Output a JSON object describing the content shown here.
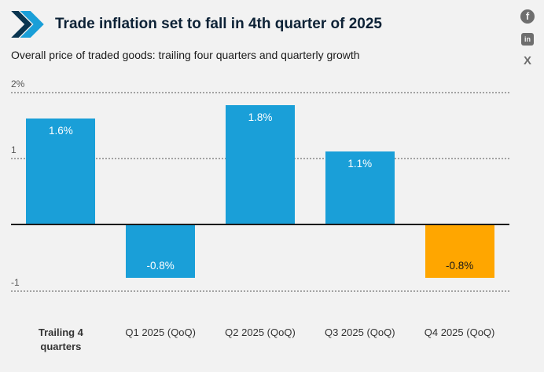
{
  "header": {
    "title": "Trade inflation set to fall in 4th quarter of 2025",
    "subtitle": "Overall price of traded goods: trailing four quarters and quarterly growth"
  },
  "social": {
    "facebook_glyph": "f",
    "linkedin_glyph": "in",
    "x_glyph": "X"
  },
  "colors": {
    "blue": "#1a9fd8",
    "dark_blue": "#0a3550",
    "orange": "#ffa600",
    "background": "#f2f2f2"
  },
  "chart_data": {
    "type": "bar",
    "title": "Trade inflation set to fall in 4th quarter of 2025",
    "subtitle": "Overall price of traded goods: trailing four quarters and quarterly growth",
    "categories": [
      "Trailing 4 quarters",
      "Q1 2025 (QoQ)",
      "Q2 2025 (QoQ)",
      "Q3 2025 (QoQ)",
      "Q4 2025 (QoQ)"
    ],
    "values": [
      1.6,
      -0.8,
      1.8,
      1.1,
      -0.8
    ],
    "value_labels": [
      "1.6%",
      "-0.8%",
      "1.8%",
      "1.1%",
      "-0.8%"
    ],
    "bar_colors": [
      "#1a9fd8",
      "#1a9fd8",
      "#1a9fd8",
      "#1a9fd8",
      "#ffa600"
    ],
    "value_label_colors": [
      "#ffffff",
      "#ffffff",
      "#ffffff",
      "#ffffff",
      "#1a1a1a"
    ],
    "category_bold": [
      true,
      false,
      false,
      false,
      false
    ],
    "ylim": [
      -1.35,
      2.2
    ],
    "gridlines": [
      {
        "value": 2,
        "label": "2%"
      },
      {
        "value": 1,
        "label": "1"
      },
      {
        "value": -1,
        "label": "-1"
      }
    ],
    "zero_line": true,
    "legend_position": "none"
  }
}
